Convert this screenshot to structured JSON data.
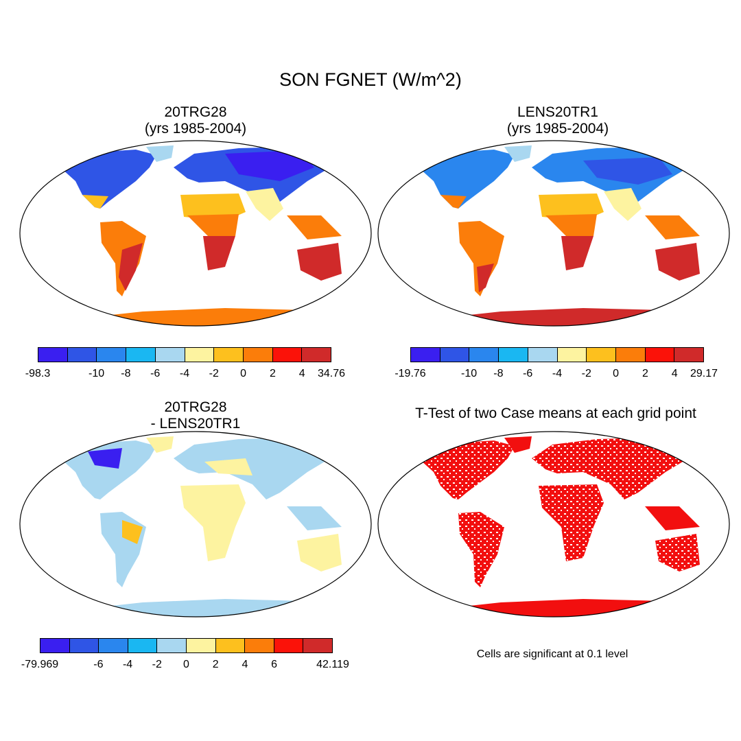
{
  "figure": {
    "title": "SON FGNET (W/m^2)"
  },
  "panels": {
    "top_left": {
      "title_line1": "20TRG28",
      "title_line2": "(yrs 1985-2004)",
      "colorbar_labels": [
        "-98.3",
        "-10",
        "-8",
        "-6",
        "-4",
        "-2",
        "0",
        "2",
        "4",
        "34.76"
      ]
    },
    "top_right": {
      "title_line1": "LENS20TR1",
      "title_line2": "(yrs 1985-2004)",
      "colorbar_labels": [
        "-19.76",
        "-10",
        "-8",
        "-6",
        "-4",
        "-2",
        "0",
        "2",
        "4",
        "29.17"
      ]
    },
    "bottom_left": {
      "title_line1": "20TRG28",
      "title_line2": "- LENS20TR1",
      "colorbar_labels": [
        "-79.969",
        "-6",
        "-4",
        "-2",
        "0",
        "2",
        "4",
        "6",
        "42.119"
      ]
    },
    "bottom_right": {
      "title": "T-Test of two Case means at each grid point",
      "note": "Cells are significant at 0.1 level"
    }
  },
  "colors": {
    "palette": [
      "#3a1ff0",
      "#2f55e6",
      "#2a86ee",
      "#1ab7f2",
      "#a9d7f0",
      "#fdf3a0",
      "#fdc01e",
      "#fb7d0a",
      "#fb1209",
      "#d02a2a"
    ],
    "significant": "#f20f0f"
  }
}
